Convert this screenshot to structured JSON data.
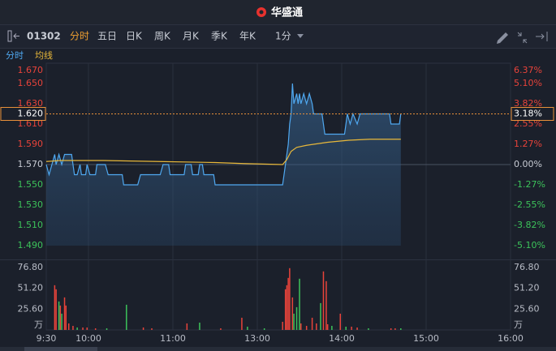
{
  "header": {
    "title": "华盛通"
  },
  "toolbar": {
    "symbol": "01302",
    "tabs": [
      "分时",
      "五日",
      "日K",
      "周K",
      "月K",
      "季K",
      "年K"
    ],
    "interval": "1分"
  },
  "chart_data": [
    {
      "type": "line",
      "series": [
        {
          "name": "分时",
          "color": "#4fa8f0",
          "x": [
            0,
            2,
            4,
            6,
            7,
            9,
            11,
            13,
            18,
            19,
            20,
            22,
            24,
            25,
            28,
            29,
            31,
            35,
            36,
            42,
            44,
            54,
            55,
            65,
            67,
            81,
            83,
            87,
            88,
            98,
            99,
            103,
            104,
            108,
            109,
            111,
            112,
            119,
            120,
            168,
            169,
            170,
            172,
            173,
            174,
            175,
            176,
            178,
            179,
            180,
            181,
            183,
            185,
            187,
            189,
            190,
            196,
            198,
            212,
            214,
            216,
            218,
            221,
            223,
            227,
            244,
            245,
            251,
            252
          ],
          "values": [
            1.57,
            1.56,
            1.57,
            1.58,
            1.57,
            1.58,
            1.57,
            1.58,
            1.58,
            1.57,
            1.56,
            1.56,
            1.57,
            1.56,
            1.56,
            1.57,
            1.56,
            1.56,
            1.57,
            1.57,
            1.56,
            1.56,
            1.55,
            1.55,
            1.56,
            1.56,
            1.57,
            1.57,
            1.56,
            1.56,
            1.57,
            1.57,
            1.56,
            1.56,
            1.57,
            1.57,
            1.56,
            1.56,
            1.55,
            1.55,
            1.56,
            1.57,
            1.59,
            1.61,
            1.62,
            1.65,
            1.63,
            1.64,
            1.63,
            1.64,
            1.63,
            1.64,
            1.63,
            1.64,
            1.63,
            1.62,
            1.62,
            1.6,
            1.6,
            1.62,
            1.61,
            1.62,
            1.61,
            1.62,
            1.62,
            1.62,
            1.61,
            1.61,
            1.62
          ]
        },
        {
          "name": "均线",
          "color": "#e8b83a",
          "x": [
            0,
            10,
            40,
            80,
            120,
            140,
            168,
            171,
            174,
            178,
            185,
            195,
            200,
            215,
            230,
            252
          ],
          "values": [
            1.573,
            1.574,
            1.574,
            1.573,
            1.572,
            1.571,
            1.57,
            1.575,
            1.583,
            1.587,
            1.589,
            1.591,
            1.592,
            1.594,
            1.595,
            1.595
          ]
        }
      ],
      "xlim": [
        0,
        330
      ],
      "ylim": [
        1.49,
        1.67
      ],
      "yticks": [
        {
          "value": 1.67,
          "label": "1.670"
        },
        {
          "value": 1.65,
          "label": "1.650"
        },
        {
          "value": 1.63,
          "label": "1.630"
        },
        {
          "value": 1.61,
          "label": "1.610"
        },
        {
          "value": 1.59,
          "label": "1.590"
        },
        {
          "value": 1.57,
          "label": "1.570"
        },
        {
          "value": 1.55,
          "label": "1.550"
        },
        {
          "value": 1.53,
          "label": "1.530"
        },
        {
          "value": 1.51,
          "label": "1.510"
        },
        {
          "value": 1.49,
          "label": "1.490"
        }
      ],
      "y2lim": [
        -5.1,
        6.37
      ],
      "y2ticks": [
        {
          "value": 6.37,
          "label": "6.37%"
        },
        {
          "value": 5.1,
          "label": "5.10%"
        },
        {
          "value": 3.82,
          "label": "3.82%"
        },
        {
          "value": 2.55,
          "label": "2.55%"
        },
        {
          "value": 1.27,
          "label": "1.27%"
        },
        {
          "value": 0,
          "label": "0.00%"
        },
        {
          "value": -1.27,
          "label": "-1.27%"
        },
        {
          "value": -2.55,
          "label": "-2.55%"
        },
        {
          "value": -3.82,
          "label": "-3.82%"
        },
        {
          "value": -5.1,
          "label": "-5.10%"
        }
      ],
      "last": {
        "value": 1.62,
        "label": "1.620",
        "change": {
          "value": 3.18,
          "label": "3.18%"
        }
      }
    },
    {
      "type": "bar",
      "unit": "万",
      "series": [
        {
          "color": "#e8433a",
          "x": [
            6,
            7,
            10,
            13,
            14,
            16,
            19,
            26,
            29,
            35,
            69,
            75,
            100,
            124,
            139,
            168,
            170,
            171,
            172,
            173,
            175,
            181,
            185,
            189,
            192,
            197,
            199,
            200,
            209,
            217,
            221,
            245,
            248
          ],
          "values": [
            55,
            50,
            30,
            40,
            30,
            8,
            5,
            3,
            3,
            2,
            3,
            2,
            8,
            2,
            15,
            10,
            50,
            55,
            64,
            76,
            40,
            8,
            5,
            15,
            8,
            72,
            60,
            7,
            20,
            4,
            3,
            2,
            2
          ]
        },
        {
          "color": "#3cc35a",
          "x": [
            9,
            11,
            22,
            43,
            57,
            109,
            143,
            155,
            176,
            178,
            180,
            195,
            203,
            213,
            229,
            252
          ],
          "values": [
            35,
            20,
            3,
            2,
            31,
            9,
            4,
            2,
            20,
            28,
            63,
            33,
            5,
            4,
            2,
            2
          ]
        }
      ],
      "xlim": [
        0,
        330
      ],
      "xticks": [
        {
          "value": 0,
          "label": "9:30"
        },
        {
          "value": 30,
          "label": "10:00"
        },
        {
          "value": 90,
          "label": "11:00"
        },
        {
          "value": 150,
          "label": "13:00"
        },
        {
          "value": 210,
          "label": "14:00"
        },
        {
          "value": 270,
          "label": "15:00"
        },
        {
          "value": 330,
          "label": "16:00"
        }
      ],
      "ylim": [
        0,
        76.8
      ],
      "yticks": [
        {
          "value": 25.6,
          "label": "25.60"
        },
        {
          "value": 51.2,
          "label": "51.20"
        },
        {
          "value": 76.8,
          "label": "76.80"
        }
      ]
    }
  ]
}
